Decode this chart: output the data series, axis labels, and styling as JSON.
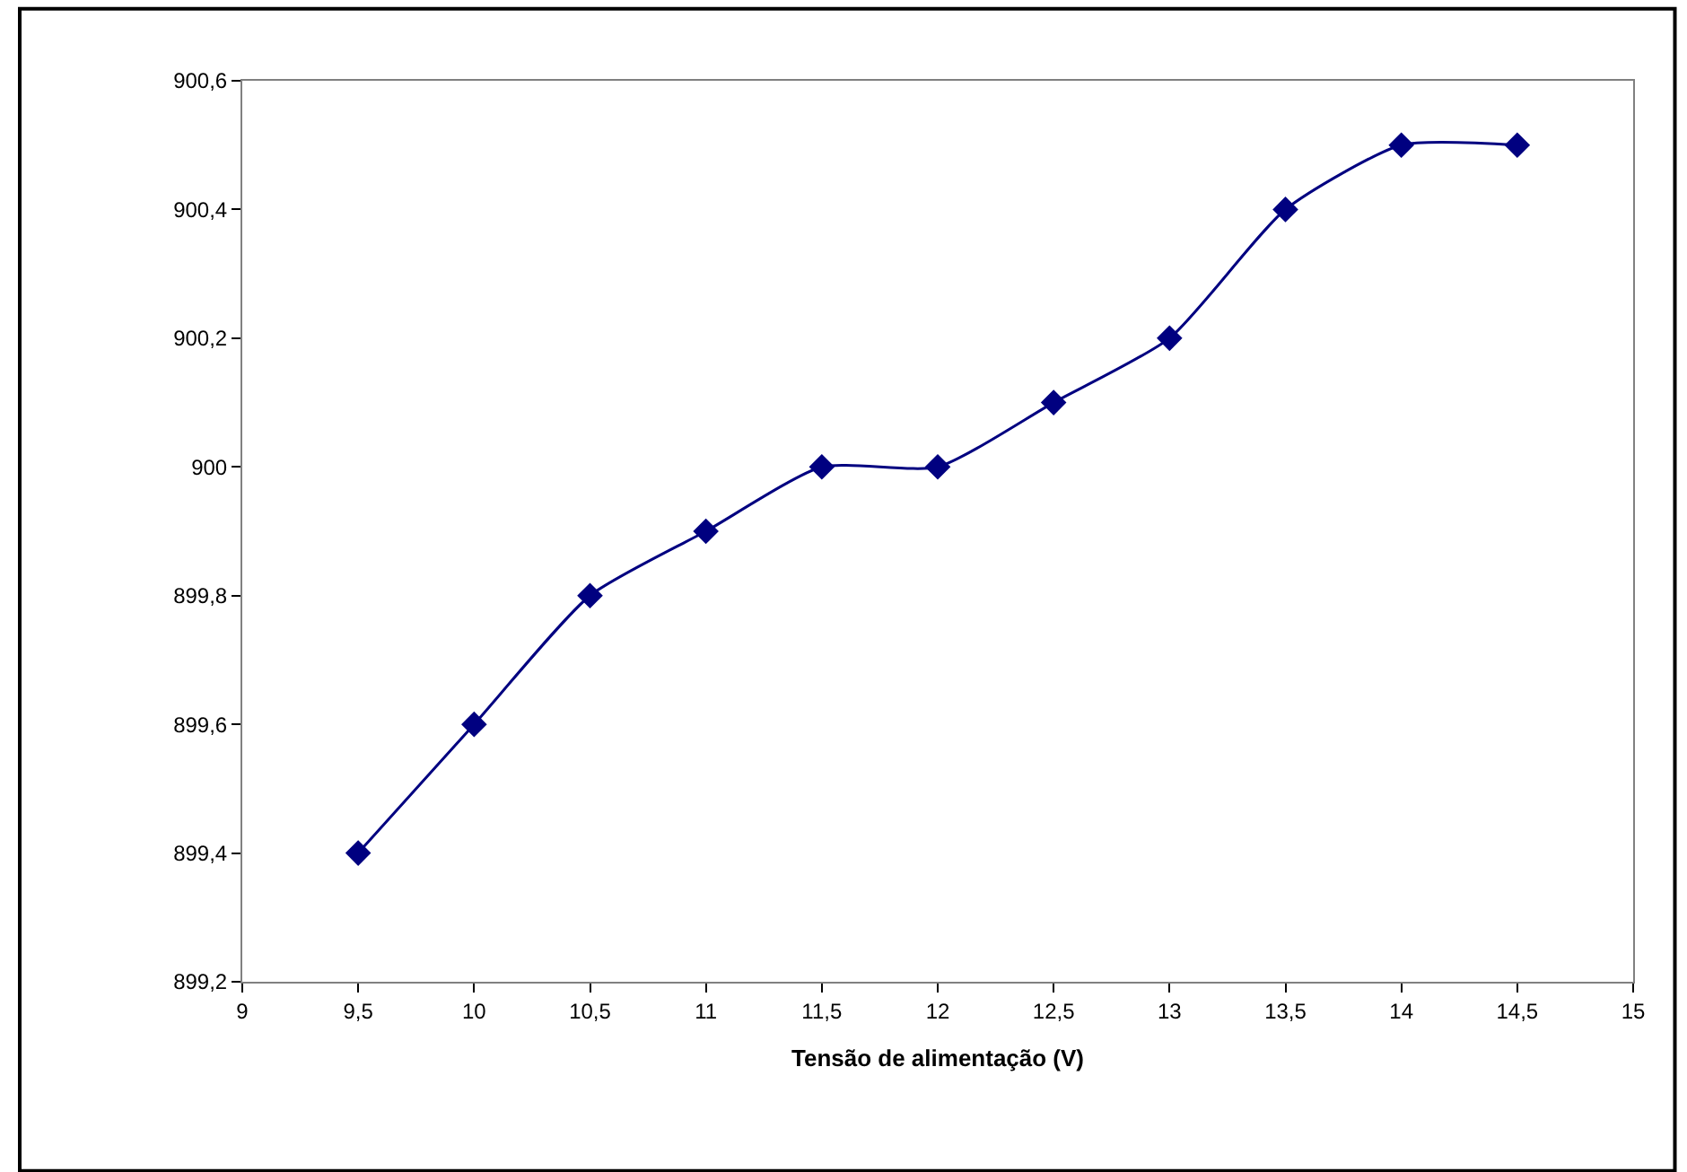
{
  "chart_data": {
    "type": "line",
    "xlabel": "Tensão de alimentação (V)",
    "x": [
      9.5,
      10,
      10.5,
      11,
      11.5,
      12,
      12.5,
      13,
      13.5,
      14,
      14.5
    ],
    "series": [
      {
        "color": "#000080",
        "values": [
          899.4,
          899.6,
          899.8,
          899.9,
          900,
          900,
          900.1,
          900.2,
          900.4,
          900.5,
          900.5
        ]
      }
    ],
    "xlim": [
      9,
      15
    ],
    "xticks": [
      9,
      {
        "value": 9.5,
        "label": "9,5"
      },
      10,
      {
        "value": 10.5,
        "label": "10,5"
      },
      11,
      {
        "value": 11.5,
        "label": "11,5"
      },
      12,
      {
        "value": 12.5,
        "label": "12,5"
      },
      13,
      {
        "value": 13.5,
        "label": "13,5"
      },
      14,
      {
        "value": 14.5,
        "label": "14,5"
      },
      15
    ],
    "ylim": [
      899.2,
      900.6
    ],
    "yticks": [
      {
        "value": 899.2,
        "label": "899,2"
      },
      {
        "value": 899.4,
        "label": "899,4"
      },
      {
        "value": 899.6,
        "label": "899,6"
      },
      {
        "value": 899.8,
        "label": "899,8"
      },
      900,
      {
        "value": 900.2,
        "label": "900,2"
      },
      {
        "value": 900.4,
        "label": "900,4"
      },
      {
        "value": 900.6,
        "label": "900,6"
      }
    ],
    "grid": false,
    "legend": false,
    "marker": "diamond",
    "line_style": "solid"
  }
}
